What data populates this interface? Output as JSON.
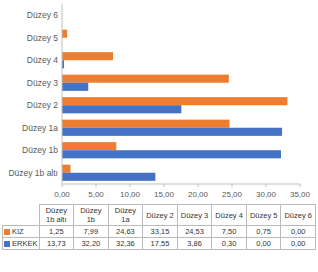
{
  "chart_data": {
    "type": "bar",
    "orientation": "horizontal",
    "categories": [
      "Düzey 1b altı",
      "Düzey 1b",
      "Düzey 1a",
      "Düzey 2",
      "Düzey 3",
      "Düzey 4",
      "Düzey 5",
      "Düzey 6"
    ],
    "series": [
      {
        "name": "KIZ",
        "color": "#ed7d31",
        "values": [
          1.25,
          7.99,
          24.63,
          33.15,
          24.53,
          7.5,
          0.75,
          0.0
        ],
        "value_labels": [
          "1,25",
          "7,99",
          "24,63",
          "33,15",
          "24,53",
          "7,50",
          "0,75",
          "0,00"
        ]
      },
      {
        "name": "ERKEK",
        "color": "#4472c4",
        "values": [
          13.73,
          32.2,
          32.36,
          17.55,
          3.86,
          0.3,
          0.0,
          0.0
        ],
        "value_labels": [
          "13,73",
          "32,20",
          "32,36",
          "17,55",
          "3,86",
          "0,30",
          "0,00",
          "0,00"
        ]
      }
    ],
    "xlim": [
      0,
      35
    ],
    "xticks": [
      {
        "value": 0,
        "label": "0,00"
      },
      {
        "value": 5,
        "label": "5,00"
      },
      {
        "value": 10,
        "label": "10,00"
      },
      {
        "value": 15,
        "label": "15,00"
      },
      {
        "value": 20,
        "label": "20,00"
      },
      {
        "value": 25,
        "label": "25,00"
      },
      {
        "value": 30,
        "label": "30,00"
      },
      {
        "value": 35,
        "label": "35,00"
      }
    ],
    "grid": false
  }
}
